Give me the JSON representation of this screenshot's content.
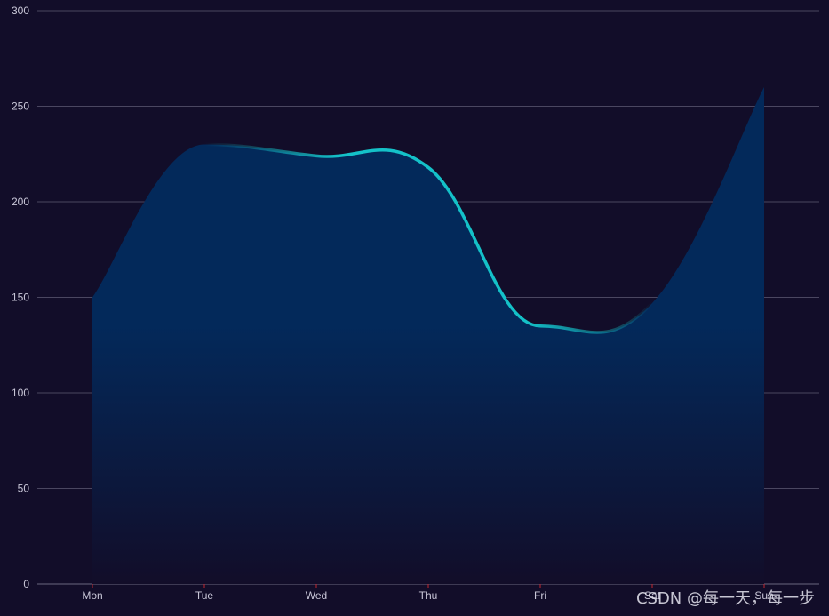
{
  "chart_data": {
    "type": "area",
    "categories": [
      "Mon",
      "Tue",
      "Wed",
      "Thu",
      "Fri",
      "Sat",
      "Sun"
    ],
    "values": [
      150,
      230,
      224,
      218,
      135,
      147,
      260
    ],
    "ylim": [
      0,
      300
    ],
    "yticks": [
      0,
      50,
      100,
      150,
      200,
      250,
      300
    ],
    "grid": true,
    "smooth": true,
    "colors": {
      "background": "#120d29",
      "gridline": "#4a4660",
      "area_top": "#03295a",
      "area_bottom": "#120d29",
      "line": "#14c1c8",
      "axis_tick": "#c0262f",
      "label": "#c9c7d8"
    }
  },
  "watermark": "CSDN @每一天，每一步"
}
